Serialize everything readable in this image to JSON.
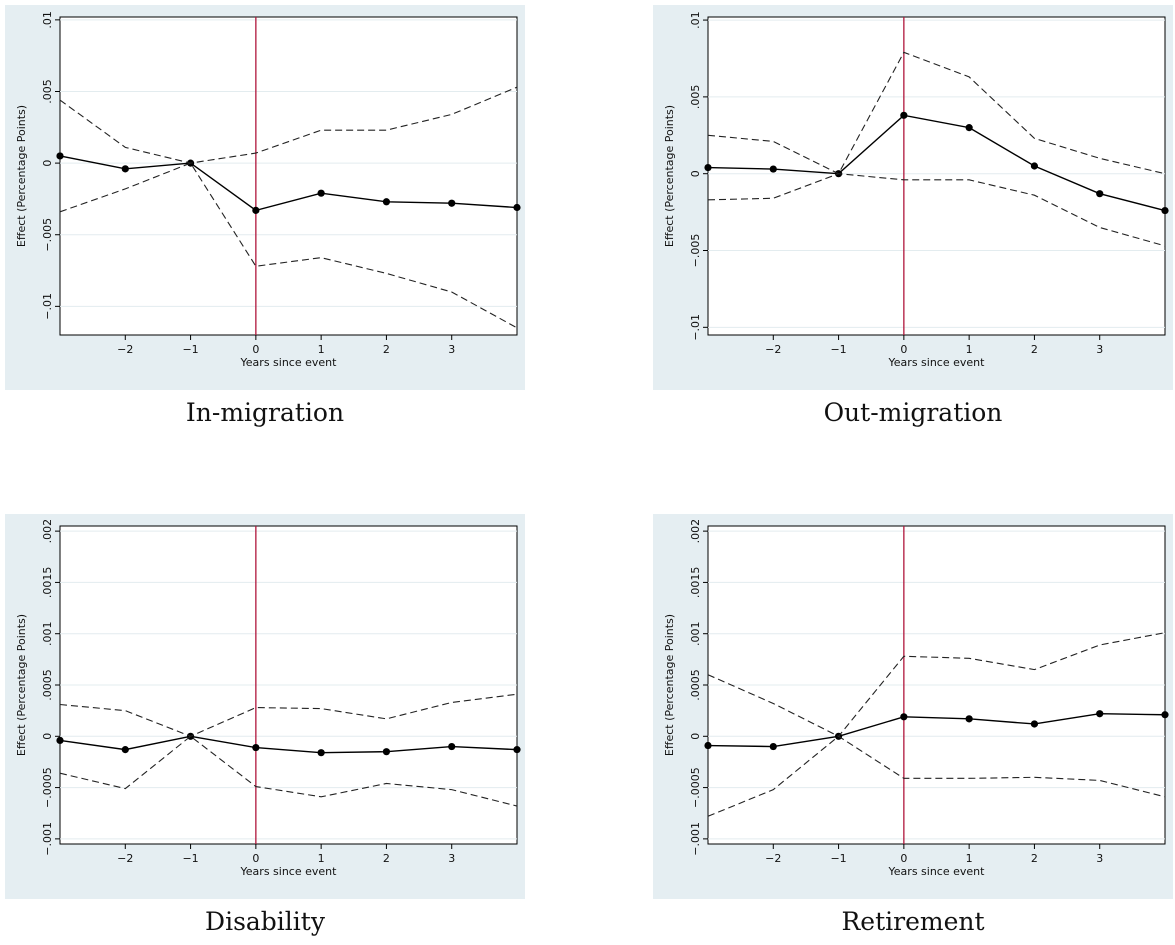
{
  "colors": {
    "background": "#e5eef2",
    "event_line": "#b0163c",
    "estimate": "#000000",
    "ci": "#222222"
  },
  "chart_data": [
    {
      "type": "line",
      "caption": "In-migration",
      "xlabel": "Years since event",
      "ylabel": "Effect (Percentage Points)",
      "x": [
        -3,
        -2,
        -1,
        0,
        1,
        2,
        3,
        4
      ],
      "x_ticks": [
        -2,
        -1,
        0,
        1,
        2,
        3
      ],
      "x_tick_labels": [
        "−2",
        "−1",
        "0",
        "1",
        "2",
        "3"
      ],
      "xlim": [
        -3,
        4
      ],
      "ylim": [
        -0.012,
        0.0102
      ],
      "y_ticks": [
        -0.01,
        -0.005,
        0,
        0.005,
        0.01
      ],
      "y_tick_labels": [
        "−.01",
        "−.005",
        "0",
        ".005",
        ".01"
      ],
      "event_x": 0,
      "grid": true,
      "series": [
        {
          "role": "estimate",
          "values": [
            0.0005,
            -0.0004,
            0.0,
            -0.0033,
            -0.0021,
            -0.0027,
            -0.0028,
            -0.0031
          ]
        },
        {
          "role": "upper",
          "values": [
            0.0044,
            0.0011,
            0.0,
            0.0007,
            0.0023,
            0.0023,
            0.0034,
            0.0053
          ]
        },
        {
          "role": "lower",
          "values": [
            -0.0034,
            -0.0018,
            0.0,
            -0.0072,
            -0.0066,
            -0.0077,
            -0.009,
            -0.0115
          ]
        }
      ]
    },
    {
      "type": "line",
      "caption": "Out-migration",
      "xlabel": "Years since event",
      "ylabel": "Effect (Percentage Points)",
      "x": [
        -3,
        -2,
        -1,
        0,
        1,
        2,
        3,
        4
      ],
      "x_ticks": [
        -2,
        -1,
        0,
        1,
        2,
        3
      ],
      "x_tick_labels": [
        "−2",
        "−1",
        "0",
        "1",
        "2",
        "3"
      ],
      "xlim": [
        -3,
        4
      ],
      "ylim": [
        -0.0105,
        0.0102
      ],
      "y_ticks": [
        -0.01,
        -0.005,
        0,
        0.005,
        0.01
      ],
      "y_tick_labels": [
        "−.01",
        "−.005",
        "0",
        ".005",
        ".01"
      ],
      "event_x": 0,
      "grid": true,
      "series": [
        {
          "role": "estimate",
          "values": [
            0.0004,
            0.0003,
            0.0,
            0.0038,
            0.003,
            0.0005,
            -0.0013,
            -0.0024
          ]
        },
        {
          "role": "upper",
          "values": [
            0.0025,
            0.0021,
            0.0,
            0.0079,
            0.0063,
            0.0023,
            0.001,
            0.0
          ]
        },
        {
          "role": "lower",
          "values": [
            -0.0017,
            -0.0016,
            0.0,
            -0.0004,
            -0.0004,
            -0.0014,
            -0.0035,
            -0.0047
          ]
        }
      ]
    },
    {
      "type": "line",
      "caption": "Disability",
      "xlabel": "Years since event",
      "ylabel": "Effect (Percentage Points)",
      "x": [
        -3,
        -2,
        -1,
        0,
        1,
        2,
        3,
        4
      ],
      "x_ticks": [
        -2,
        -1,
        0,
        1,
        2,
        3
      ],
      "x_tick_labels": [
        "−2",
        "−1",
        "0",
        "1",
        "2",
        "3"
      ],
      "xlim": [
        -3,
        4
      ],
      "ylim": [
        -0.00105,
        0.00205
      ],
      "y_ticks": [
        -0.001,
        -0.0005,
        0,
        0.0005,
        0.001,
        0.0015,
        0.002
      ],
      "y_tick_labels": [
        "−.001",
        "−.0005",
        "0",
        ".0005",
        ".001",
        ".0015",
        ".002"
      ],
      "event_x": 0,
      "grid": true,
      "series": [
        {
          "role": "estimate",
          "values": [
            -4e-05,
            -0.00013,
            0.0,
            -0.00011,
            -0.00016,
            -0.00015,
            -0.0001,
            -0.00013
          ]
        },
        {
          "role": "upper",
          "values": [
            0.00031,
            0.00025,
            0.0,
            0.00028,
            0.00027,
            0.00017,
            0.00033,
            0.00041
          ]
        },
        {
          "role": "lower",
          "values": [
            -0.00036,
            -0.00051,
            0.0,
            -0.00049,
            -0.00059,
            -0.00046,
            -0.00052,
            -0.00068
          ]
        }
      ]
    },
    {
      "type": "line",
      "caption": "Retirement",
      "xlabel": "Years since event",
      "ylabel": "Effect (Percentage Points)",
      "x": [
        -3,
        -2,
        -1,
        0,
        1,
        2,
        3,
        4
      ],
      "x_ticks": [
        -2,
        -1,
        0,
        1,
        2,
        3
      ],
      "x_tick_labels": [
        "−2",
        "−1",
        "0",
        "1",
        "2",
        "3"
      ],
      "xlim": [
        -3,
        4
      ],
      "ylim": [
        -0.00105,
        0.00205
      ],
      "y_ticks": [
        -0.001,
        -0.0005,
        0,
        0.0005,
        0.001,
        0.0015,
        0.002
      ],
      "y_tick_labels": [
        "−.001",
        "−.0005",
        "0",
        ".0005",
        ".001",
        ".0015",
        ".002"
      ],
      "event_x": 0,
      "grid": true,
      "series": [
        {
          "role": "estimate",
          "values": [
            -9e-05,
            -0.0001,
            0.0,
            0.00019,
            0.00017,
            0.00012,
            0.00022,
            0.00021
          ]
        },
        {
          "role": "upper",
          "values": [
            0.0006,
            0.00032,
            0.0,
            0.00078,
            0.00076,
            0.00065,
            0.00089,
            0.00101
          ]
        },
        {
          "role": "lower",
          "values": [
            -0.00078,
            -0.00052,
            0.0,
            -0.00041,
            -0.00041,
            -0.0004,
            -0.00043,
            -0.00059
          ]
        }
      ]
    }
  ]
}
